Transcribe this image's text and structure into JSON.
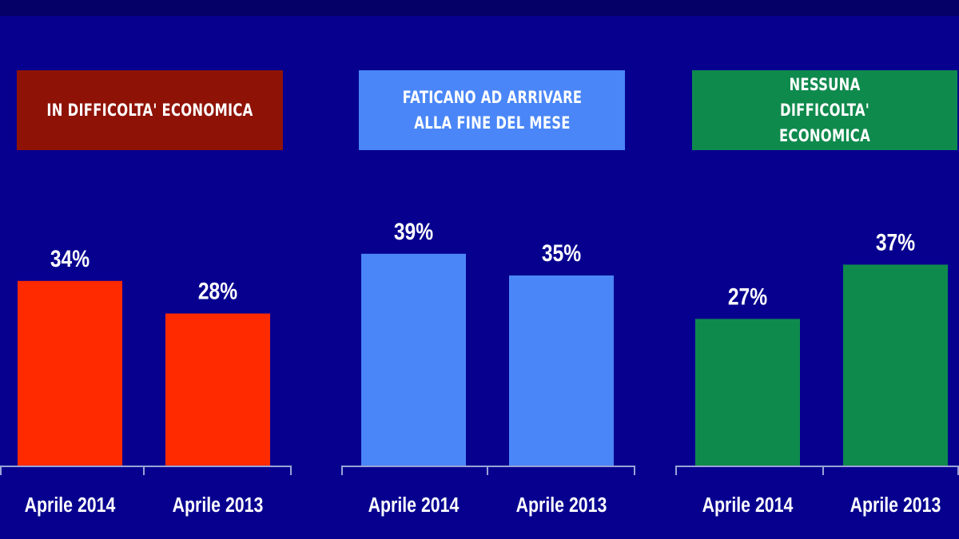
{
  "chart_data": [
    {
      "type": "bar",
      "title": "IN DIFFICOLTA' ECONOMICA",
      "categories": [
        "Aprile 2014",
        "Aprile 2013"
      ],
      "values": [
        34,
        28
      ],
      "value_labels": [
        "34%",
        "28%"
      ],
      "unit": "%",
      "header_color": "#8f1206",
      "bar_color": "#ff2a00"
    },
    {
      "type": "bar",
      "title": "FATICANO AD ARRIVARE ALLA FINE DEL MESE",
      "categories": [
        "Aprile 2014",
        "Aprile 2013"
      ],
      "values": [
        39,
        35
      ],
      "value_labels": [
        "39%",
        "35%"
      ],
      "unit": "%",
      "header_color": "#4a86f7",
      "bar_color": "#4a86f7"
    },
    {
      "type": "bar",
      "title": "NESSUNA DIFFICOLTA' ECONOMICA",
      "categories": [
        "Aprile 2014",
        "Aprile 2013"
      ],
      "values": [
        27,
        37
      ],
      "value_labels": [
        "27%",
        "37%"
      ],
      "unit": "%",
      "header_color": "#0f8a4d",
      "bar_color": "#0f8a4d"
    }
  ]
}
